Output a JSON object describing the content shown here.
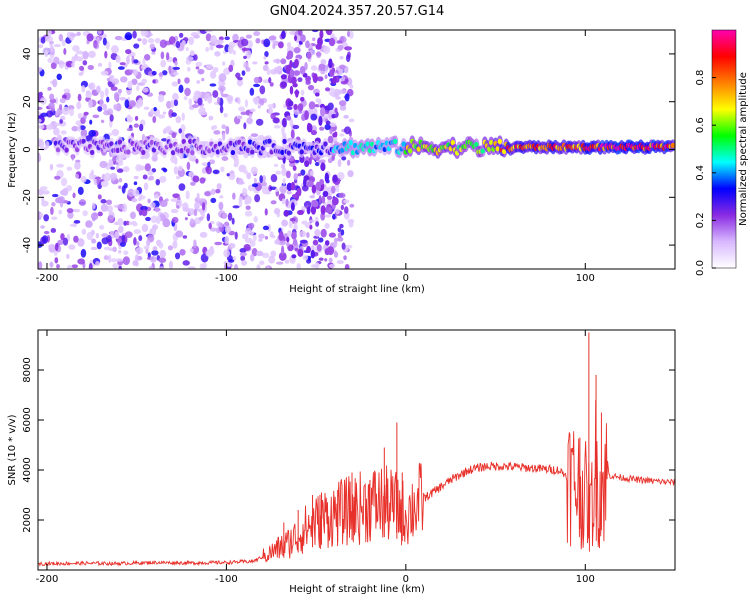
{
  "title": "GN04.2024.357.20.57.G14",
  "colors": {
    "snr_line": "#e8302a",
    "frame": "#000000"
  },
  "chart_data": [
    {
      "type": "heatmap",
      "xlabel": "Height of straight line (km)",
      "ylabel": "Frequency (Hz)",
      "xlim": [
        -205,
        150
      ],
      "ylim": [
        -50,
        50
      ],
      "xticks": [
        -200,
        -100,
        0,
        100
      ],
      "xtick_labels": [
        "-200",
        "-100",
        "0",
        "100"
      ],
      "yticks": [
        -40,
        -20,
        0,
        20,
        40
      ],
      "ytick_labels": [
        "-40",
        "-20",
        "0",
        "20",
        "40"
      ],
      "colorbar": {
        "label": "Normalized spectral amplitude",
        "range": [
          0,
          1
        ],
        "ticks": [
          0.0,
          0.2,
          0.4,
          0.6,
          0.8
        ],
        "tick_labels": [
          "0.0",
          "0.2",
          "0.4",
          "0.6",
          "0.8"
        ],
        "colormap": [
          "#ffffff",
          "#d8b8ff",
          "#8a2be2",
          "#0000ff",
          "#00ffff",
          "#00ff00",
          "#ffff00",
          "#ff8000",
          "#ff0000",
          "#ff00b0"
        ]
      },
      "ridge": {
        "frequency_hz": 1,
        "segments": [
          {
            "x": [
              -195,
              -100
            ],
            "amplitude": 0.25
          },
          {
            "x": [
              -100,
              -40
            ],
            "amplitude": 0.3
          },
          {
            "x": [
              -40,
              0
            ],
            "amplitude": 0.45
          },
          {
            "x": [
              0,
              50
            ],
            "amplitude": 0.65
          },
          {
            "x": [
              50,
              100
            ],
            "amplitude": 0.85
          },
          {
            "x": [
              100,
              150
            ],
            "amplitude": 0.95
          }
        ]
      },
      "noise_region": {
        "x": [
          -205,
          -30
        ],
        "frequency_range": [
          -50,
          50
        ]
      }
    },
    {
      "type": "line",
      "xlabel": "Height of straight line (km)",
      "ylabel": "SNR (10 * v/v)",
      "xlim": [
        -205,
        150
      ],
      "ylim": [
        0,
        9600
      ],
      "xticks": [
        -200,
        -100,
        0,
        100
      ],
      "xtick_labels": [
        "-200",
        "-100",
        "0",
        "100"
      ],
      "yticks": [
        2000,
        4000,
        6000,
        8000
      ],
      "ytick_labels": [
        "2000",
        "4000",
        "6000",
        "8000"
      ],
      "series": [
        {
          "x": [
            -205,
            -180,
            -160,
            -140,
            -120,
            -100,
            -85,
            -75,
            -65,
            -55,
            -45,
            -35,
            -25,
            -15,
            -5,
            0,
            5,
            15,
            25,
            35,
            45,
            55,
            65,
            75,
            85,
            95,
            100,
            103,
            106,
            108,
            112,
            120,
            130,
            140,
            150
          ],
          "values": [
            250,
            270,
            260,
            300,
            280,
            300,
            350,
            700,
            1100,
            1700,
            2100,
            2300,
            2500,
            2700,
            2500,
            2200,
            2600,
            3100,
            3600,
            4000,
            4150,
            4150,
            4100,
            4050,
            4000,
            3500,
            3000,
            2300,
            4200,
            3000,
            3800,
            3700,
            3600,
            3550,
            3500
          ],
          "spikes": [
            {
              "x": -68,
              "value": 1900
            },
            {
              "x": -60,
              "value": 2400
            },
            {
              "x": -52,
              "value": 3000
            },
            {
              "x": -47,
              "value": 3100
            },
            {
              "x": -38,
              "value": 3200
            },
            {
              "x": -30,
              "value": 3900
            },
            {
              "x": -20,
              "value": 3600
            },
            {
              "x": -12,
              "value": 4900
            },
            {
              "x": -5,
              "value": 5900
            },
            {
              "x": -2,
              "value": 3900
            },
            {
              "x": 97,
              "value": 5300
            },
            {
              "x": 102,
              "value": 9500
            },
            {
              "x": 106,
              "value": 7800
            },
            {
              "x": 109,
              "value": 6300
            }
          ]
        }
      ]
    }
  ]
}
